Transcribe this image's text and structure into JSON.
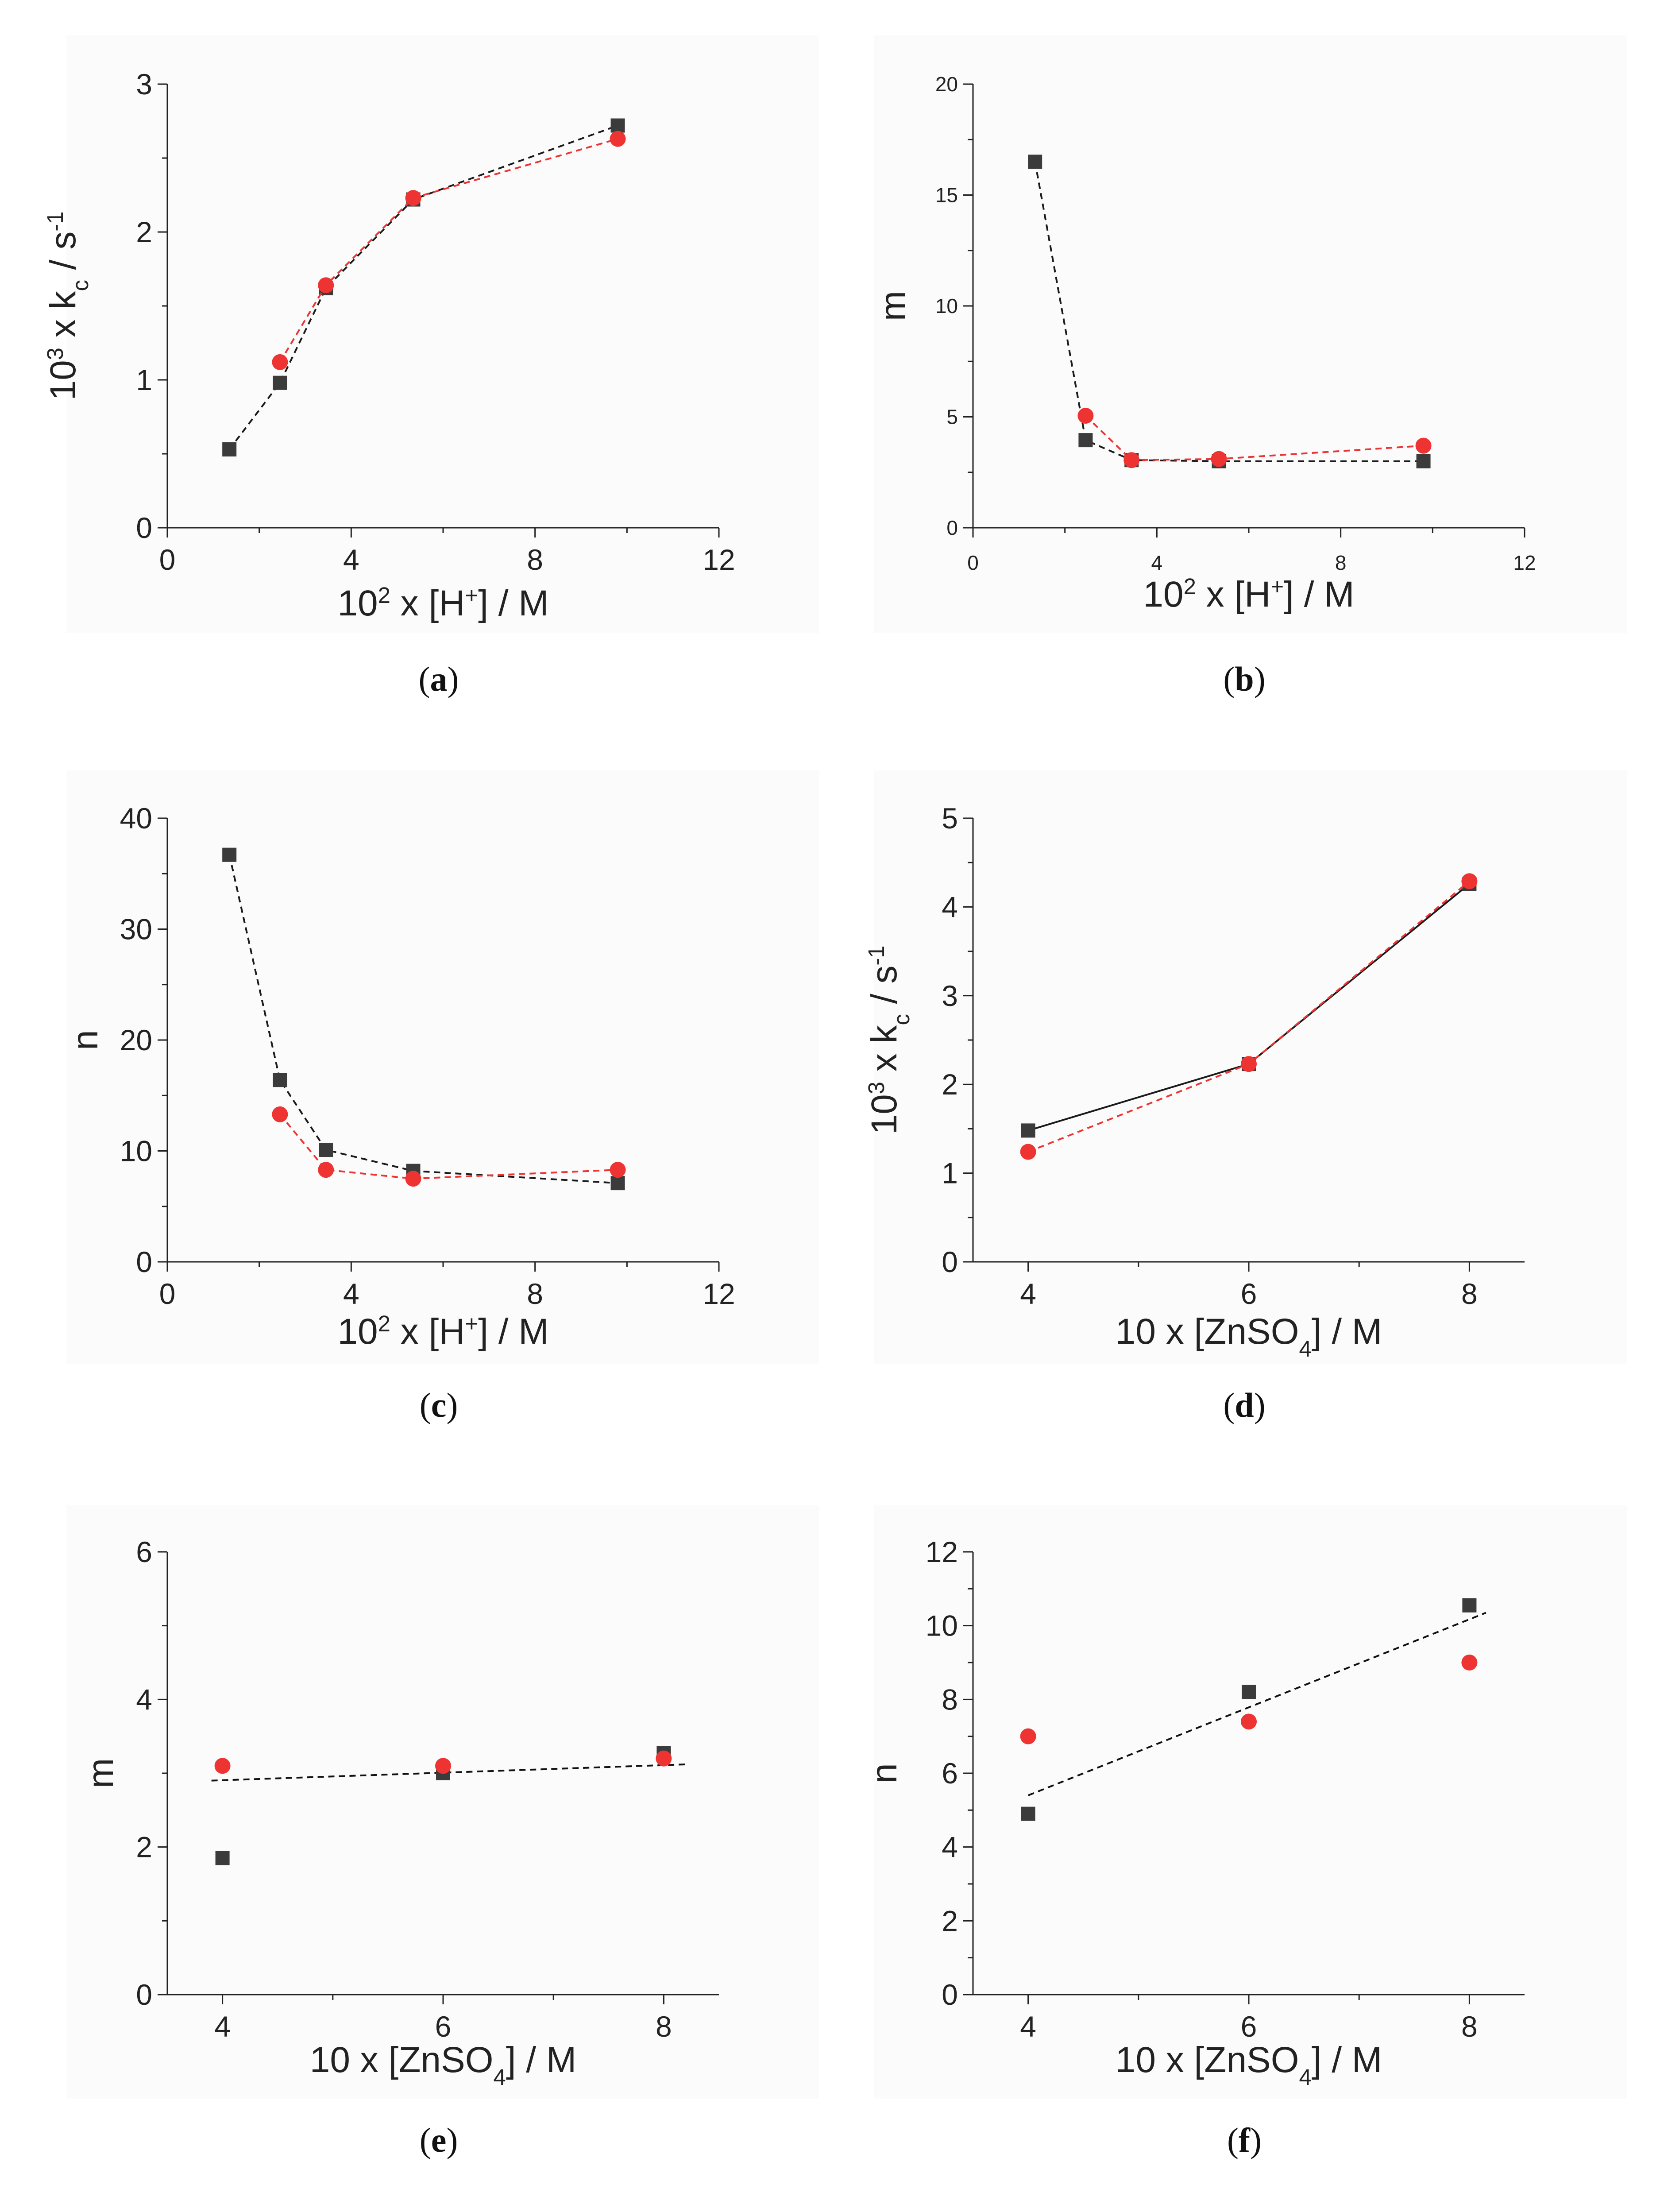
{
  "colors": {
    "black_series": "#3b3b3b",
    "red_series": "#ee3333",
    "axis": "#222222",
    "panel_bg": "#fbfbfb"
  },
  "chart_data": [
    {
      "id": "a",
      "type": "line",
      "panel_label": "a",
      "ylabel": {
        "pre": "10",
        "sup": "3",
        "mid": " x k",
        "sub": "c",
        "post": " / s",
        "sup2": "-1"
      },
      "xlabel": {
        "pre": "10",
        "sup": "2",
        "mid": " x [H",
        "sup2": "+",
        "post": "] / M"
      },
      "xlim": [
        0,
        12
      ],
      "ylim": [
        0,
        3
      ],
      "xticks": [
        "0",
        "4",
        "8",
        "12"
      ],
      "yticks": [
        "0",
        "1",
        "2",
        "3"
      ],
      "series": [
        {
          "name": "black",
          "marker": "square",
          "line": "dashed",
          "x": [
            1.35,
            2.45,
            3.45,
            5.35,
            9.8
          ],
          "y": [
            0.53,
            0.98,
            1.62,
            2.22,
            2.72
          ]
        },
        {
          "name": "red",
          "marker": "circle",
          "line": "dashed",
          "x": [
            2.45,
            3.45,
            5.35,
            9.8
          ],
          "y": [
            1.12,
            1.64,
            2.23,
            2.63
          ]
        }
      ]
    },
    {
      "id": "b",
      "type": "line",
      "panel_label": "b",
      "ylabel": {
        "text": "m"
      },
      "xlabel": {
        "pre": "10",
        "sup": "2",
        "mid": " x [H",
        "sup2": "+",
        "post": "] / M"
      },
      "xlim": [
        0,
        12
      ],
      "ylim": [
        0,
        20
      ],
      "xticks": [
        "0",
        "4",
        "8",
        "12"
      ],
      "yticks": [
        "0",
        "5",
        "10",
        "15",
        "20"
      ],
      "series": [
        {
          "name": "black",
          "marker": "square",
          "line": "dashed",
          "x": [
            1.35,
            2.45,
            3.45,
            5.35,
            9.8
          ],
          "y": [
            16.5,
            3.95,
            3.05,
            3.0,
            3.0
          ]
        },
        {
          "name": "red",
          "marker": "circle",
          "line": "dashed",
          "x": [
            2.45,
            3.45,
            5.35,
            9.8
          ],
          "y": [
            5.05,
            3.05,
            3.1,
            3.7
          ]
        }
      ]
    },
    {
      "id": "c",
      "type": "line",
      "panel_label": "c",
      "ylabel": {
        "text": "n"
      },
      "xlabel": {
        "pre": "10",
        "sup": "2",
        "mid": " x [H",
        "sup2": "+",
        "post": "] / M"
      },
      "xlim": [
        0,
        12
      ],
      "ylim": [
        0,
        40
      ],
      "xticks": [
        "0",
        "4",
        "8",
        "12"
      ],
      "yticks": [
        "0",
        "10",
        "20",
        "30",
        "40"
      ],
      "series": [
        {
          "name": "black",
          "marker": "square",
          "line": "dashed",
          "x": [
            1.35,
            2.45,
            3.45,
            5.35,
            9.8
          ],
          "y": [
            36.7,
            16.4,
            10.1,
            8.2,
            7.1
          ]
        },
        {
          "name": "red",
          "marker": "circle",
          "line": "dashed",
          "x": [
            2.45,
            3.45,
            5.35,
            9.8
          ],
          "y": [
            13.3,
            8.3,
            7.5,
            8.3
          ]
        }
      ]
    },
    {
      "id": "d",
      "type": "line",
      "panel_label": "d",
      "ylabel": {
        "pre": "10",
        "sup": "3",
        "mid": " x k",
        "sub": "c",
        "post": " / s",
        "sup2": "-1"
      },
      "xlabel": {
        "pre": "10 x [ZnSO",
        "sub": "4",
        "post": "] / M"
      },
      "xlim": [
        3.5,
        8.5
      ],
      "ylim": [
        0,
        5
      ],
      "xticks": [
        "4",
        "6",
        "8"
      ],
      "yticks": [
        "0",
        "1",
        "2",
        "3",
        "4",
        "5"
      ],
      "series": [
        {
          "name": "black",
          "marker": "square",
          "line": "solid",
          "x": [
            4,
            6,
            8
          ],
          "y": [
            1.48,
            2.23,
            4.26
          ]
        },
        {
          "name": "red",
          "marker": "circle",
          "line": "dashed",
          "x": [
            4,
            6,
            8
          ],
          "y": [
            1.24,
            2.23,
            4.29
          ]
        }
      ]
    },
    {
      "id": "e",
      "type": "scatter",
      "panel_label": "e",
      "ylabel": {
        "text": "m"
      },
      "xlabel": {
        "pre": "10 x [ZnSO",
        "sub": "4",
        "post": "] / M"
      },
      "xlim": [
        3.5,
        8.5
      ],
      "ylim": [
        0,
        6
      ],
      "xticks": [
        "4",
        "6",
        "8"
      ],
      "yticks": [
        "0",
        "2",
        "4",
        "6"
      ],
      "series": [
        {
          "name": "black",
          "marker": "square",
          "x": [
            4,
            6,
            8
          ],
          "y": [
            1.85,
            3.0,
            3.27
          ]
        },
        {
          "name": "red",
          "marker": "circle",
          "x": [
            4,
            6,
            8
          ],
          "y": [
            3.1,
            3.1,
            3.2
          ]
        }
      ],
      "fit": {
        "x": [
          3.9,
          8.2
        ],
        "y": [
          2.9,
          3.12
        ]
      }
    },
    {
      "id": "f",
      "type": "scatter",
      "panel_label": "f",
      "ylabel": {
        "text": "n"
      },
      "xlabel": {
        "pre": "10 x [ZnSO",
        "sub": "4",
        "post": "] / M"
      },
      "xlim": [
        3.5,
        8.5
      ],
      "ylim": [
        0,
        12
      ],
      "xticks": [
        "4",
        "6",
        "8"
      ],
      "yticks": [
        "0",
        "2",
        "4",
        "6",
        "8",
        "10",
        "12"
      ],
      "series": [
        {
          "name": "black",
          "marker": "square",
          "x": [
            4,
            6,
            8
          ],
          "y": [
            4.9,
            8.2,
            10.55
          ]
        },
        {
          "name": "red",
          "marker": "circle",
          "x": [
            4,
            6,
            8
          ],
          "y": [
            7.0,
            7.4,
            9.0
          ]
        }
      ],
      "fit": {
        "x": [
          4.0,
          8.15
        ],
        "y": [
          5.4,
          10.35
        ]
      }
    }
  ]
}
